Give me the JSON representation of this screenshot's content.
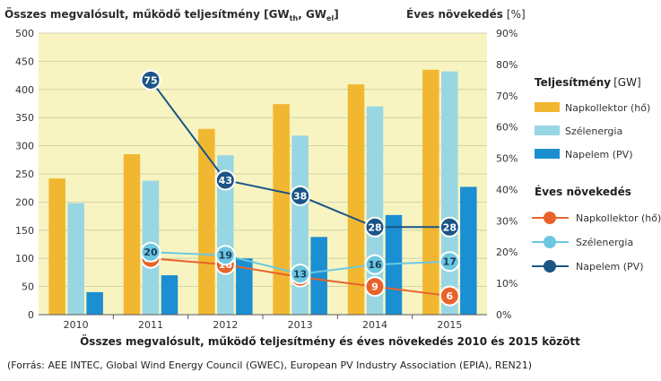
{
  "chart_title_left": "Összes megvalósult, működő teljesítmény [GW",
  "chart_title_left_sub1": "th",
  "chart_title_left_mid": ", GW",
  "chart_title_left_sub2": "el",
  "chart_title_left_end": "]",
  "chart_title_right": "Éves növekedés",
  "chart_title_right_unit": "[%]",
  "footer_title": "Összes megvalósult, működő teljesítmény és éves növekedés 2010 és 2015 között",
  "source": "(Forrás: AEE INTEC, Global Wind Energy Council (GWEC), European PV Industry Association (EPIA), REN21)",
  "legend": {
    "bars_heading": "Teljesítmény",
    "bars_unit": "[GW]",
    "lines_heading": "Éves növekedés"
  },
  "chart_data": {
    "type": "bar",
    "categories": [
      "2010",
      "2011",
      "2012",
      "2013",
      "2014",
      "2015"
    ],
    "ylim": [
      0,
      500
    ],
    "y_ticks": [
      0,
      50,
      100,
      150,
      200,
      250,
      300,
      350,
      400,
      450,
      500
    ],
    "y2lim": [
      0,
      90
    ],
    "y2_ticks": [
      "0%",
      "10%",
      "20%",
      "30%",
      "40%",
      "50%",
      "60%",
      "70%",
      "80%",
      "90%"
    ],
    "series": [
      {
        "name": "Napkollektor (hő)",
        "color": "#f2b731",
        "values": [
          242,
          285,
          330,
          374,
          409,
          435
        ]
      },
      {
        "name": "Szélenergia",
        "color": "#99d6e3",
        "values": [
          198,
          238,
          283,
          318,
          370,
          432
        ]
      },
      {
        "name": "Napelem (PV)",
        "color": "#1b8fd2",
        "values": [
          40,
          70,
          100,
          138,
          177,
          227
        ]
      }
    ],
    "lines": [
      {
        "name": "Napkollektor (hő)",
        "color": "#e8632b",
        "x": [
          "2011",
          "2012",
          "2013",
          "2014",
          "2015"
        ],
        "values": [
          18,
          16,
          12,
          9,
          6
        ]
      },
      {
        "name": "Szélenergia",
        "color": "#6cc8e0",
        "x": [
          "2011",
          "2012",
          "2013",
          "2014",
          "2015"
        ],
        "values": [
          20,
          19,
          13,
          16,
          17
        ]
      },
      {
        "name": "Napelem (PV)",
        "color": "#1a5586",
        "x": [
          "2011",
          "2012",
          "2013",
          "2014",
          "2015"
        ],
        "values": [
          75,
          43,
          38,
          28,
          28
        ]
      }
    ]
  }
}
